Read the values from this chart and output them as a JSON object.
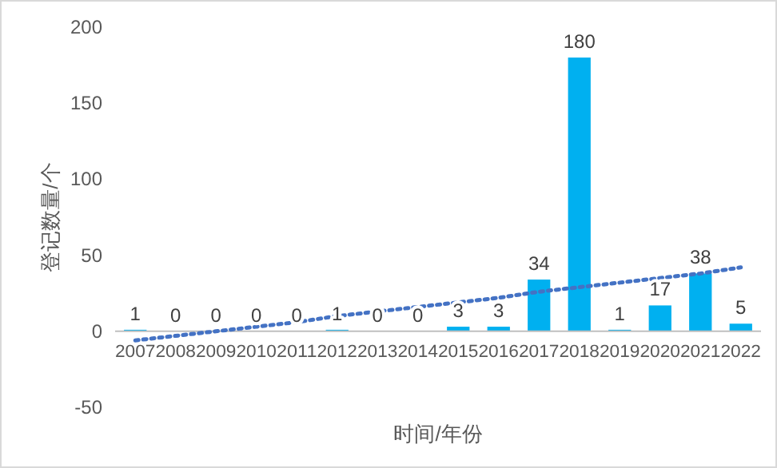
{
  "chart_data": {
    "type": "bar",
    "xlabel": "时间/年份",
    "ylabel": "登记数量/个",
    "categories": [
      "2007",
      "2008",
      "2009",
      "2010",
      "2011",
      "2012",
      "2013",
      "2014",
      "2015",
      "2016",
      "2017",
      "2018",
      "2019",
      "2020",
      "2021",
      "2022"
    ],
    "series": [
      {
        "color": "#00b0f0",
        "values": [
          1,
          0,
          0,
          0,
          0,
          1,
          0,
          0,
          3,
          3,
          34,
          180,
          1,
          17,
          38,
          5
        ],
        "value_labels": [
          "1",
          "0",
          "0",
          "0",
          "0",
          "1",
          "0",
          "0",
          "3",
          "3",
          "34",
          "180",
          "1",
          "17",
          "38",
          "5"
        ]
      },
      {
        "type": "line",
        "color": "#4472c4",
        "line_style": "dotted",
        "values": [
          -6,
          -3,
          0,
          3,
          6,
          10,
          13,
          16,
          19,
          22,
          26,
          29,
          32,
          35,
          38,
          42
        ]
      }
    ],
    "ylim": [
      -50,
      200
    ],
    "yticks": [
      -50,
      0,
      50,
      100,
      150,
      200
    ],
    "grid": false
  }
}
